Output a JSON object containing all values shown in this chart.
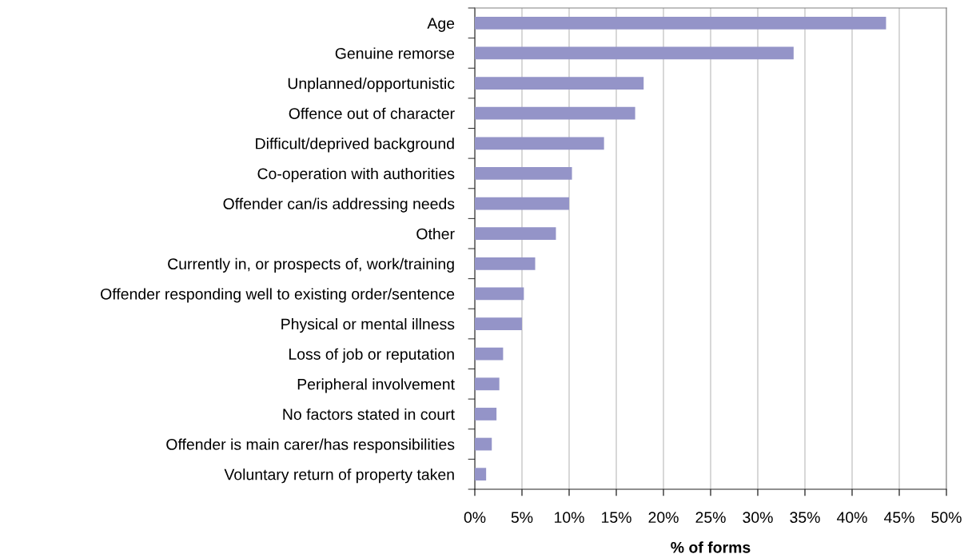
{
  "chart_data": {
    "type": "bar",
    "orientation": "horizontal",
    "xlabel": "% of forms",
    "categories": [
      "Age",
      "Genuine remorse",
      "Unplanned/opportunistic",
      "Offence out of character",
      "Difficult/deprived background",
      "Co-operation with authorities",
      "Offender can/is addressing needs",
      "Other",
      "Currently in, or prospects of, work/training",
      "Offender responding well to existing order/sentence",
      "Physical or mental illness",
      "Loss of job or reputation",
      "Peripheral involvement",
      "No factors stated in court",
      "Offender is main carer/has responsibilities",
      "Voluntary return of property taken"
    ],
    "values": [
      43.6,
      33.8,
      17.9,
      17.0,
      13.7,
      10.3,
      10.0,
      8.6,
      6.4,
      5.2,
      5.0,
      3.0,
      2.6,
      2.3,
      1.8,
      1.2
    ],
    "color": "#9494c8",
    "xlim": [
      0,
      50
    ],
    "xticks": [
      {
        "value": 0,
        "label": "0%"
      },
      {
        "value": 5,
        "label": "5%"
      },
      {
        "value": 10,
        "label": "10%"
      },
      {
        "value": 15,
        "label": "15%"
      },
      {
        "value": 20,
        "label": "20%"
      },
      {
        "value": 25,
        "label": "25%"
      },
      {
        "value": 30,
        "label": "30%"
      },
      {
        "value": 35,
        "label": "35%"
      },
      {
        "value": 40,
        "label": "40%"
      },
      {
        "value": 45,
        "label": "45%"
      },
      {
        "value": 50,
        "label": "50%"
      }
    ],
    "grid": "x",
    "legend": false
  }
}
